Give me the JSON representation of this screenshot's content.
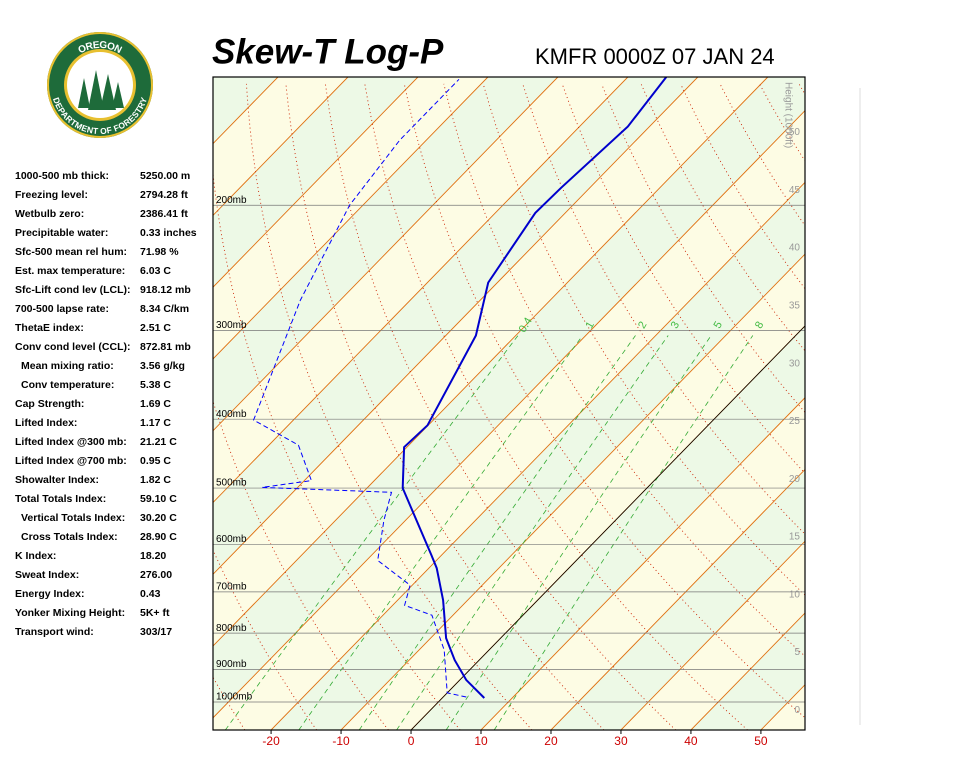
{
  "logo": {
    "top": "OREGON",
    "bottom": "DEPARTMENT OF FORESTRY"
  },
  "indices": [
    {
      "label": "1000-500 mb thick:",
      "value": "5250.00 m"
    },
    {
      "label": "Freezing level:",
      "value": "2794.28 ft"
    },
    {
      "label": "Wetbulb zero:",
      "value": "2386.41 ft"
    },
    {
      "label": "Precipitable water:",
      "value": "0.33 inches"
    },
    {
      "label": "Sfc-500 mean rel hum:",
      "value": "71.98 %"
    },
    {
      "label": "Est. max temperature:",
      "value": "6.03 C"
    },
    {
      "label": "Sfc-Lift cond lev (LCL):",
      "value": "918.12 mb"
    },
    {
      "label": "700-500 lapse rate:",
      "value": "8.34 C/km"
    },
    {
      "label": "ThetaE index:",
      "value": "2.51 C"
    },
    {
      "label": "Conv cond level (CCL):",
      "value": "872.81 mb"
    },
    {
      "label": "Mean mixing ratio:",
      "value": "3.56 g/kg"
    },
    {
      "label": "Conv temperature:",
      "value": "5.38 C"
    },
    {
      "label": "Cap Strength:",
      "value": "1.69 C"
    },
    {
      "label": "Lifted Index:",
      "value": "1.17 C"
    },
    {
      "label": "Lifted Index @300 mb:",
      "value": "21.21 C"
    },
    {
      "label": "Lifted Index @700 mb:",
      "value": "0.95 C"
    },
    {
      "label": "Showalter Index:",
      "value": "1.82 C"
    },
    {
      "label": "Total Totals Index:",
      "value": "59.10 C"
    },
    {
      "label": "Vertical Totals Index:",
      "value": "30.20 C"
    },
    {
      "label": "Cross Totals Index:",
      "value": "28.90 C"
    },
    {
      "label": "K Index:",
      "value": "18.20"
    },
    {
      "label": "Sweat Index:",
      "value": "276.00"
    },
    {
      "label": "Energy Index:",
      "value": "0.43"
    },
    {
      "label": "Yonker Mixing Height:",
      "value": "5K+ ft"
    },
    {
      "label": "Transport wind:",
      "value": "303/17"
    }
  ],
  "chart_data": {
    "type": "skewt",
    "title": "Skew-T Log-P",
    "subtitle": "KMFR 0000Z 07 JAN 24",
    "xlim": [
      -28.3,
      56.3
    ],
    "xticks": [
      -20,
      -10,
      0,
      10,
      20,
      30,
      40,
      50
    ],
    "ylim": [
      1095,
      132
    ],
    "yticks": [
      {
        "value": 200,
        "label": "200mb"
      },
      {
        "value": 300,
        "label": "300mb"
      },
      {
        "value": 400,
        "label": "400mb"
      },
      {
        "value": 500,
        "label": "500mb"
      },
      {
        "value": 600,
        "label": "600mb"
      },
      {
        "value": 700,
        "label": "700mb"
      },
      {
        "value": 800,
        "label": "800mb"
      },
      {
        "value": 900,
        "label": "900mb"
      },
      {
        "value": 1000,
        "label": "1000mb"
      }
    ],
    "y2label": "Height (1000ft)",
    "y2lim": [
      -1.7,
      54.8
    ],
    "y2ticks": [
      0,
      5,
      10,
      15,
      20,
      25,
      30,
      35,
      40,
      45,
      50
    ],
    "mixing_ratios": [
      0.4,
      1,
      2,
      3,
      5,
      8
    ],
    "series": [
      {
        "color": "#0000cc",
        "line_style": "solid",
        "pressure": [
          987,
          931,
          873,
          813,
          719,
          648,
          621,
          500,
          438,
          408,
          305,
          257,
          205,
          189,
          155,
          132
        ],
        "temperature": [
          6.0,
          0.9,
          -3.5,
          -7.8,
          -13.5,
          -18.9,
          -21.5,
          -34.9,
          -40.4,
          -40.1,
          -45.7,
          -51.3,
          -54.3,
          -54.1,
          -53.1,
          -54.5
        ]
      },
      {
        "color": "#0000ff",
        "line_style": "dashed",
        "pressure": [
          984,
          971,
          845,
          755,
          731,
          685,
          632,
          555,
          507,
          499,
          488,
          435,
          401,
          272,
          200,
          162,
          133
        ],
        "temperature": [
          3.3,
          0.0,
          -6.4,
          -13.0,
          -18.3,
          -20.3,
          -28.4,
          -33.1,
          -35.9,
          -55.1,
          -49.0,
          -55.8,
          -65.7,
          -75.7,
          -81.9,
          -83.8,
          -83.8
        ]
      }
    ]
  }
}
